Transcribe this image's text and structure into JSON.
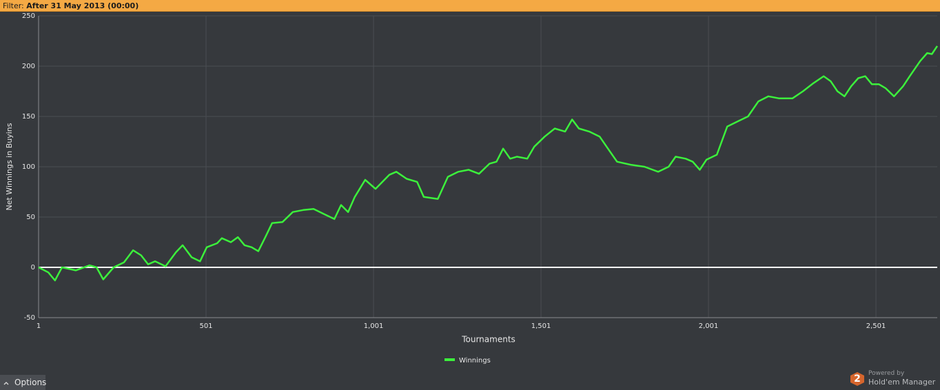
{
  "filter_bar": {
    "label": "Filter:",
    "value": "After 31 May 2013 (00:00)"
  },
  "chart_data": {
    "type": "line",
    "y_label": "Net Winnings in Buyins",
    "x_label": "Tournaments",
    "x": [
      1,
      30,
      50,
      61,
      71,
      112,
      153,
      174,
      194,
      225,
      256,
      283,
      307,
      328,
      349,
      380,
      411,
      431,
      458,
      483,
      503,
      534,
      548,
      575,
      596,
      616,
      637,
      657,
      678,
      698,
      729,
      760,
      791,
      822,
      853,
      884,
      904,
      925,
      945,
      976,
      1007,
      1048,
      1069,
      1100,
      1131,
      1151,
      1193,
      1223,
      1254,
      1285,
      1316,
      1347,
      1368,
      1388,
      1409,
      1429,
      1460,
      1481,
      1512,
      1542,
      1573,
      1594,
      1614,
      1645,
      1676,
      1707,
      1728,
      1769,
      1810,
      1851,
      1882,
      1903,
      1933,
      1954,
      1975,
      1995,
      2026,
      2057,
      2088,
      2119,
      2150,
      2180,
      2211,
      2252,
      2283,
      2314,
      2345,
      2366,
      2386,
      2407,
      2427,
      2448,
      2469,
      2489,
      2510,
      2530,
      2555,
      2582,
      2602,
      2633,
      2654,
      2668,
      2684
    ],
    "series": [
      {
        "name": "Winnings",
        "color": "#3cf03c",
        "values": [
          0,
          -5,
          -13,
          -6,
          0,
          -3,
          2,
          0,
          -12,
          0,
          5,
          17,
          12,
          3,
          6,
          1,
          15,
          22,
          10,
          6,
          20,
          24,
          29,
          25,
          30,
          22,
          20,
          16,
          30,
          44,
          45,
          55,
          57,
          58,
          53,
          48,
          62,
          55,
          70,
          87,
          78,
          92,
          95,
          88,
          85,
          70,
          68,
          90,
          95,
          97,
          93,
          103,
          105,
          118,
          108,
          110,
          108,
          120,
          130,
          138,
          135,
          147,
          138,
          135,
          130,
          115,
          105,
          102,
          100,
          95,
          100,
          110,
          108,
          105,
          97,
          107,
          112,
          140,
          145,
          150,
          165,
          170,
          168,
          168,
          175,
          183,
          190,
          185,
          175,
          170,
          180,
          188,
          190,
          182,
          182,
          178,
          170,
          180,
          190,
          205,
          213,
          212,
          220
        ]
      }
    ],
    "xlim": [
      1,
      2684
    ],
    "ylim": [
      -50,
      250
    ],
    "xticks": [
      1,
      501,
      {
        "value": 1001,
        "label": "1,001"
      },
      {
        "value": 1501,
        "label": "1,501"
      },
      {
        "value": 2001,
        "label": "2,001"
      },
      {
        "value": 2501,
        "label": "2,501"
      }
    ],
    "yticks": [
      -50,
      0,
      50,
      100,
      150,
      200,
      250
    ],
    "grid": true,
    "legend": "bottom"
  },
  "footer": {
    "options": "Options",
    "powered_by": "Powered by",
    "brand": "Hold'em Manager",
    "logo": "2"
  }
}
